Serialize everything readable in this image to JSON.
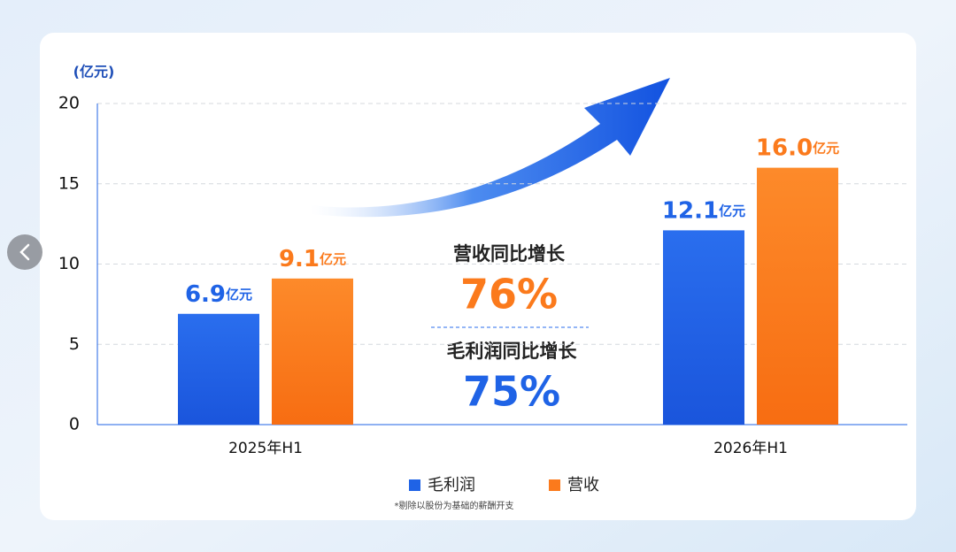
{
  "chart_data": {
    "type": "bar",
    "y_unit": "(亿元)",
    "categories": [
      "2025年H1",
      "2026年H1"
    ],
    "series": [
      {
        "name": "毛利润",
        "color": "#1f63e6",
        "values": [
          6.9,
          12.1
        ],
        "value_labels": [
          "6.9亿元",
          "12.1亿元"
        ]
      },
      {
        "name": "营收",
        "color": "#fb7a1c",
        "values": [
          9.1,
          16.0
        ],
        "value_labels": [
          "9.1亿元",
          "16.0亿元"
        ]
      }
    ],
    "ylim": [
      0,
      20
    ],
    "yticks": [
      0,
      5,
      10,
      15,
      20
    ],
    "grid": true,
    "annotations": [
      "营收同比增长",
      "76%",
      "毛利润同比增长",
      "75%"
    ],
    "footnote": "*剔除以股份为基础的薪酬开支"
  }
}
